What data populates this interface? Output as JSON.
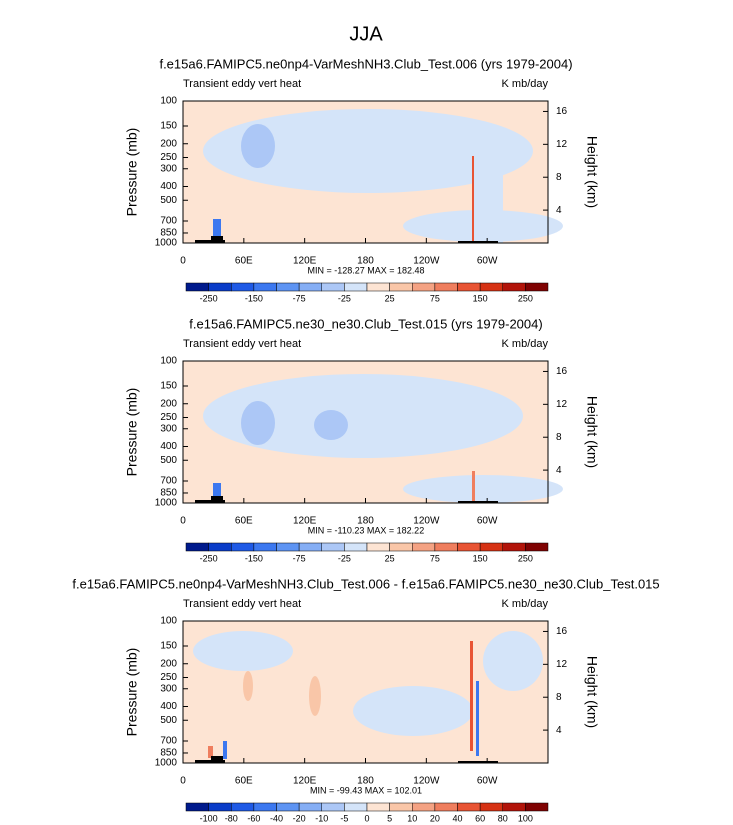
{
  "figure_title": "JJA",
  "chart_data": [
    {
      "type": "contour",
      "title": "f.e15a6.FAMIPC5.ne0np4-VarMeshNH3.Club_Test.006 (yrs 1979-2004)",
      "left_string": "Transient eddy vert heat",
      "right_string": "K mb/day",
      "ylabel": "Pressure (mb)",
      "y2label": "Height (km)",
      "log_y": true,
      "ylim": [
        1000,
        100
      ],
      "yticks": [
        100,
        150,
        200,
        250,
        300,
        400,
        500,
        700,
        850,
        1000
      ],
      "y2ticks": [
        4,
        8,
        12,
        16
      ],
      "xlim": [
        0,
        360
      ],
      "xticks": [
        0,
        {
          "value": 60,
          "label": "60E"
        },
        {
          "value": 120,
          "label": "120E"
        },
        180,
        {
          "value": 240,
          "label": "120W"
        },
        {
          "value": 300,
          "label": "60W"
        }
      ],
      "stats": "MIN = -128.27  MAX = 182.48",
      "colorbar": {
        "colors": [
          "#001a8c",
          "#0a3cc8",
          "#1f5ae6",
          "#3c78f0",
          "#5e94f3",
          "#85aef5",
          "#acc7f6",
          "#d4e4f9",
          "#fde4d3",
          "#f9c6a8",
          "#f4a283",
          "#ef7e5e",
          "#e85434",
          "#d63214",
          "#b2140a",
          "#7f0202"
        ],
        "labels": [
          -250,
          -150,
          -75,
          -25,
          25,
          75,
          150,
          250
        ]
      }
    },
    {
      "type": "contour",
      "title": "f.e15a6.FAMIPC5.ne30_ne30.Club_Test.015 (yrs 1979-2004)",
      "left_string": "Transient eddy vert heat",
      "right_string": "K mb/day",
      "ylabel": "Pressure (mb)",
      "y2label": "Height (km)",
      "log_y": true,
      "ylim": [
        1000,
        100
      ],
      "yticks": [
        100,
        150,
        200,
        250,
        300,
        400,
        500,
        700,
        850,
        1000
      ],
      "y2ticks": [
        4,
        8,
        12,
        16
      ],
      "xlim": [
        0,
        360
      ],
      "xticks": [
        0,
        {
          "value": 60,
          "label": "60E"
        },
        {
          "value": 120,
          "label": "120E"
        },
        180,
        {
          "value": 240,
          "label": "120W"
        },
        {
          "value": 300,
          "label": "60W"
        }
      ],
      "stats": "MIN = -110.23  MAX = 182.22",
      "colorbar": {
        "colors": [
          "#001a8c",
          "#0a3cc8",
          "#1f5ae6",
          "#3c78f0",
          "#5e94f3",
          "#85aef5",
          "#acc7f6",
          "#d4e4f9",
          "#fde4d3",
          "#f9c6a8",
          "#f4a283",
          "#ef7e5e",
          "#e85434",
          "#d63214",
          "#b2140a",
          "#7f0202"
        ],
        "labels": [
          -250,
          -150,
          -75,
          -25,
          25,
          75,
          150,
          250
        ]
      }
    },
    {
      "type": "contour",
      "title": "f.e15a6.FAMIPC5.ne0np4-VarMeshNH3.Club_Test.006 - f.e15a6.FAMIPC5.ne30_ne30.Club_Test.015",
      "left_string": "Transient eddy vert heat",
      "right_string": "K mb/day",
      "ylabel": "Pressure (mb)",
      "y2label": "Height (km)",
      "log_y": true,
      "ylim": [
        1000,
        100
      ],
      "yticks": [
        100,
        150,
        200,
        250,
        300,
        400,
        500,
        700,
        850,
        1000
      ],
      "y2ticks": [
        4,
        8,
        12,
        16
      ],
      "xlim": [
        0,
        360
      ],
      "xticks": [
        0,
        {
          "value": 60,
          "label": "60E"
        },
        {
          "value": 120,
          "label": "120E"
        },
        180,
        {
          "value": 240,
          "label": "120W"
        },
        {
          "value": 300,
          "label": "60W"
        }
      ],
      "stats": "MIN = -99.43  MAX = 102.01",
      "colorbar": {
        "colors": [
          "#001a8c",
          "#0a3cc8",
          "#1f5ae6",
          "#3c78f0",
          "#5e94f3",
          "#85aef5",
          "#acc7f6",
          "#d4e4f9",
          "#fde4d3",
          "#f9c6a8",
          "#f4a283",
          "#ef7e5e",
          "#e85434",
          "#d63214",
          "#b2140a",
          "#7f0202"
        ],
        "labels": [
          -100,
          -80,
          -60,
          -40,
          -20,
          -10,
          -5,
          0,
          5,
          10,
          20,
          40,
          60,
          80,
          100
        ]
      }
    }
  ]
}
